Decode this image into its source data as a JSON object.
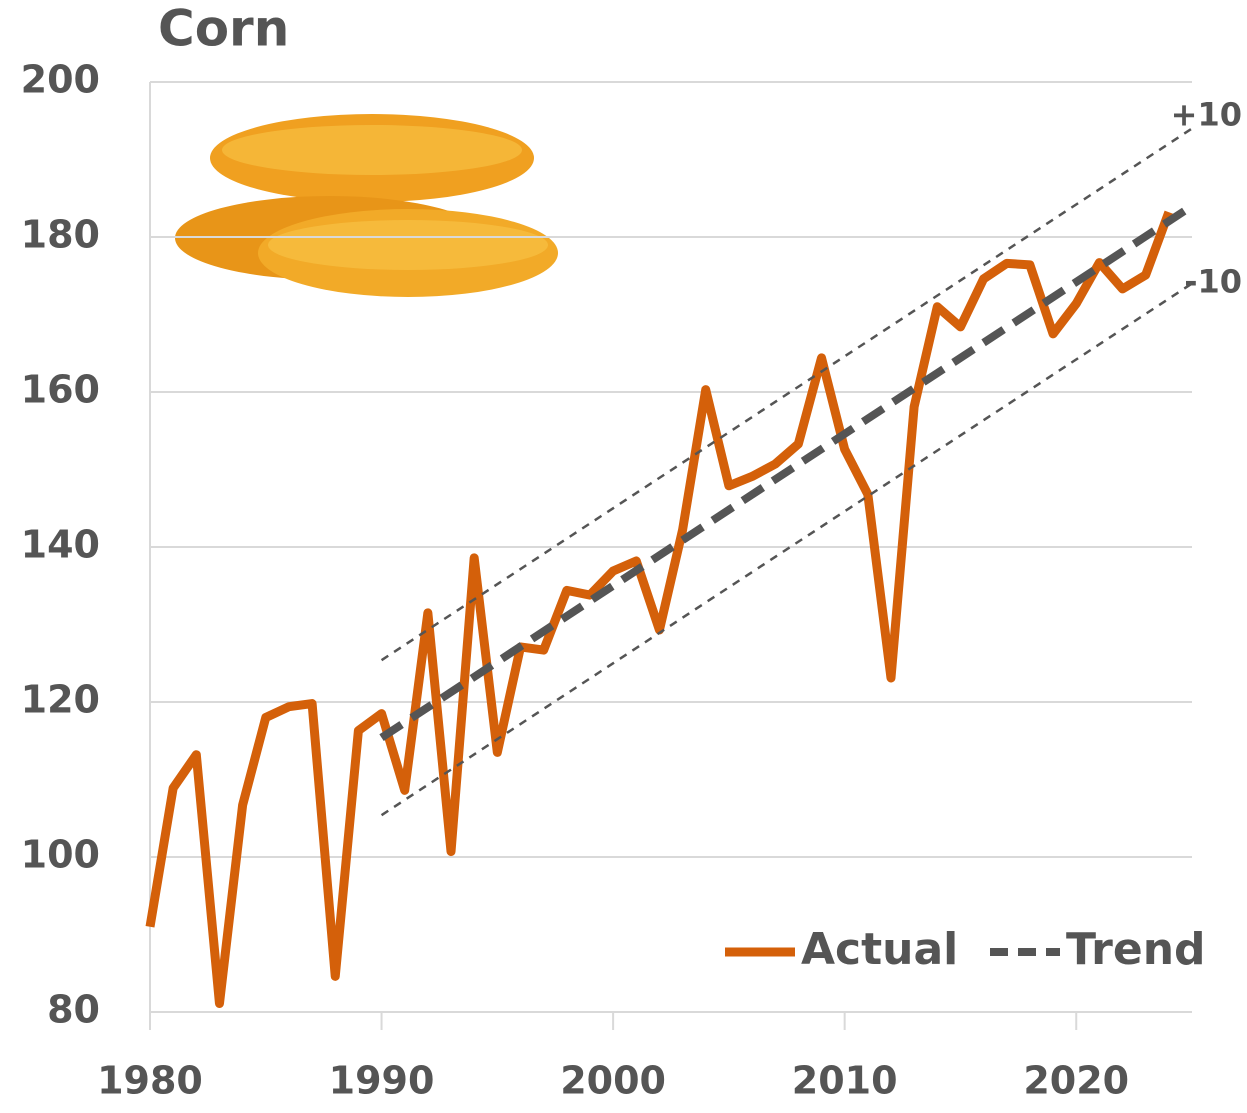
{
  "chart_data": {
    "type": "line",
    "title": "Corn",
    "xlim": [
      1980,
      2025
    ],
    "xticks": [
      1980,
      1990,
      2000,
      2010,
      2020
    ],
    "ylim": [
      80,
      200
    ],
    "yticks": [
      80,
      100,
      120,
      140,
      160,
      180,
      200
    ],
    "grid": true,
    "legend": "lower right",
    "series": [
      {
        "name": "Actual",
        "color": "#d4600a",
        "dash": false,
        "width": 9,
        "legend": true,
        "x": [
          1980,
          1981,
          1982,
          1983,
          1984,
          1985,
          1986,
          1987,
          1988,
          1989,
          1990,
          1991,
          1992,
          1993,
          1994,
          1995,
          1996,
          1997,
          1998,
          1999,
          2000,
          2001,
          2002,
          2003,
          2004,
          2005,
          2006,
          2007,
          2008,
          2009,
          2010,
          2011,
          2012,
          2013,
          2014,
          2015,
          2016,
          2017,
          2018,
          2019,
          2020,
          2021,
          2022,
          2023,
          2024
        ],
        "values": [
          91.0,
          108.9,
          113.2,
          81.1,
          106.7,
          118.0,
          119.4,
          119.8,
          84.6,
          116.3,
          118.5,
          108.6,
          131.5,
          100.7,
          138.6,
          113.5,
          127.1,
          126.7,
          134.4,
          133.8,
          136.9,
          138.2,
          129.3,
          142.2,
          160.3,
          147.9,
          149.1,
          150.7,
          153.3,
          164.4,
          152.6,
          146.8,
          123.1,
          158.1,
          171.0,
          168.4,
          174.6,
          176.6,
          176.4,
          167.5,
          171.4,
          176.7,
          173.3,
          175.1,
          183.2
        ]
      },
      {
        "name": "Trend",
        "color": "#555555",
        "dash": true,
        "width": 8,
        "legend": true,
        "x": [
          1990,
          2025
        ],
        "values": [
          115.4,
          184.0
        ]
      },
      {
        "name": "+10",
        "color": "#555555",
        "dash": true,
        "width": 2.5,
        "legend": false,
        "x": [
          1990,
          2025
        ],
        "values": [
          125.4,
          194.0
        ]
      },
      {
        "name": "-10",
        "color": "#555555",
        "dash": true,
        "width": 2.5,
        "legend": false,
        "x": [
          1990,
          2025
        ],
        "values": [
          105.4,
          174.0
        ]
      }
    ]
  }
}
